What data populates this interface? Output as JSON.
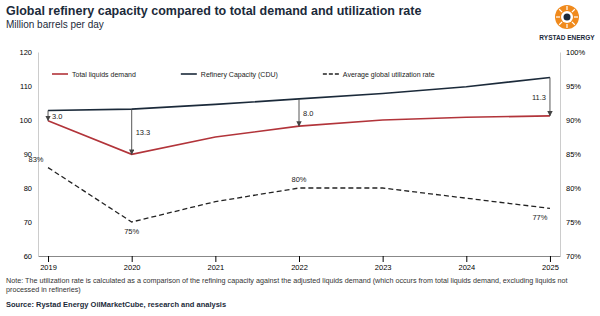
{
  "chart_data": {
    "type": "line",
    "title": "Global refinery capacity compared to total demand and utilization rate",
    "subtitle": "Million barrels per day",
    "logo_text": "RYSTAD ENERGY",
    "categories": [
      "2019",
      "2020",
      "2021",
      "2022",
      "2023",
      "2024",
      "2025"
    ],
    "series": [
      {
        "name": "Total liquids demand",
        "color": "#b2343a",
        "line_style": "solid",
        "values": [
          99.8,
          89.9,
          95.0,
          98.2,
          100.0,
          100.8,
          101.2
        ]
      },
      {
        "name": "Refinery Capacity (CDU)",
        "color": "#1b2a3a",
        "line_style": "solid",
        "values": [
          102.8,
          103.2,
          104.6,
          106.2,
          107.8,
          109.8,
          112.5
        ]
      },
      {
        "name": "Average global utilization rate",
        "color": "#222222",
        "line_style": "dashed",
        "axis": "y2",
        "values": [
          83,
          75,
          78,
          80,
          80,
          78.5,
          77
        ],
        "value_labels": [
          "83%",
          "75%",
          null,
          "80%",
          null,
          null,
          "77%"
        ]
      }
    ],
    "annotations": [
      {
        "x": "2019",
        "value": 3,
        "label": "3.0"
      },
      {
        "x": "2020",
        "value": 13.3,
        "label": "13.3"
      },
      {
        "x": "2022",
        "value": 8,
        "label": "8.0"
      },
      {
        "x": "2025",
        "value": 11.3,
        "label": "11.3"
      }
    ],
    "ylim": [
      60,
      120
    ],
    "yticks": [
      60,
      70,
      80,
      90,
      100,
      110,
      120
    ],
    "y2lim": [
      70,
      100
    ],
    "y2ticks": [
      {
        "value": 70,
        "label": "70%"
      },
      {
        "value": 75,
        "label": "75%"
      },
      {
        "value": 80,
        "label": "80%"
      },
      {
        "value": 85,
        "label": "85%"
      },
      {
        "value": 90,
        "label": "90%"
      },
      {
        "value": 95,
        "label": "95%"
      },
      {
        "value": 100,
        "label": "100%"
      }
    ],
    "grid": false,
    "legend": "upper left",
    "note": "Note: The utilization rate is calculated as a comparison of the refining capacity against the adjusted liquids demand (which occurs from total liquids demand, excluding liquids not processed in refineries)",
    "source": "Source: Rystad Energy OilMarketCube, research and analysis"
  }
}
